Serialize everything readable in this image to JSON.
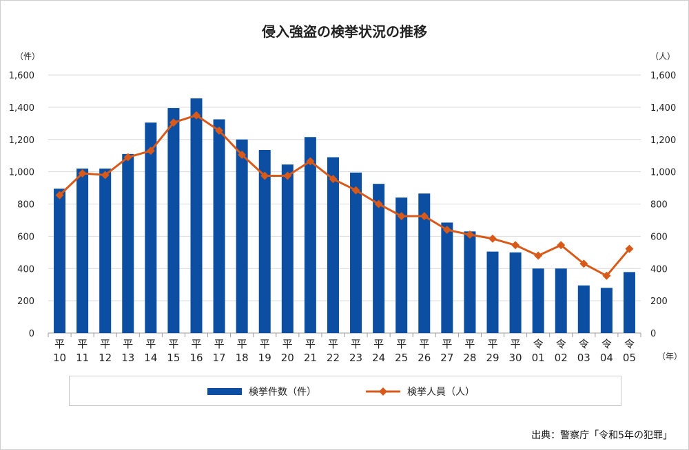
{
  "title": "侵入強盗の検挙状況の推移",
  "source": "出典：警察庁「令和5年の犯罪」",
  "units": {
    "left": "（件）",
    "right": "（人）",
    "x": "（年）"
  },
  "colors": {
    "bar": "#0b4ea2",
    "line": "#d85a1a"
  },
  "legend": {
    "bar_label": "検挙件数（件）",
    "line_label": "検挙人員（人）"
  },
  "chart_data": {
    "type": "bar",
    "title": "侵入強盗の検挙状況の推移",
    "categories": [
      [
        "平",
        "10"
      ],
      [
        "平",
        "11"
      ],
      [
        "平",
        "12"
      ],
      [
        "平",
        "13"
      ],
      [
        "平",
        "14"
      ],
      [
        "平",
        "15"
      ],
      [
        "平",
        "16"
      ],
      [
        "平",
        "17"
      ],
      [
        "平",
        "18"
      ],
      [
        "平",
        "19"
      ],
      [
        "平",
        "20"
      ],
      [
        "平",
        "21"
      ],
      [
        "平",
        "22"
      ],
      [
        "平",
        "23"
      ],
      [
        "平",
        "24"
      ],
      [
        "平",
        "25"
      ],
      [
        "平",
        "26"
      ],
      [
        "平",
        "27"
      ],
      [
        "平",
        "28"
      ],
      [
        "平",
        "29"
      ],
      [
        "平",
        "30"
      ],
      [
        "令",
        "01"
      ],
      [
        "令",
        "02"
      ],
      [
        "令",
        "03"
      ],
      [
        "令",
        "04"
      ],
      [
        "令",
        "05"
      ]
    ],
    "ylim": [
      0,
      1600
    ],
    "yticks": [
      0,
      200,
      400,
      600,
      800,
      1000,
      1200,
      1400,
      1600
    ],
    "ytick_labels": [
      "0",
      "200",
      "400",
      "600",
      "800",
      "1,000",
      "1,200",
      "1,400",
      "1,600"
    ],
    "series": [
      {
        "name": "検挙件数（件）",
        "type": "bar",
        "axis": "left",
        "values": [
          895,
          1020,
          1020,
          1110,
          1305,
          1395,
          1455,
          1325,
          1200,
          1135,
          1045,
          1215,
          1090,
          995,
          925,
          840,
          865,
          685,
          630,
          505,
          500,
          400,
          400,
          295,
          280,
          378
        ]
      },
      {
        "name": "検挙人員（人）",
        "type": "line",
        "axis": "right",
        "values": [
          855,
          990,
          980,
          1090,
          1130,
          1305,
          1350,
          1255,
          1105,
          975,
          975,
          1065,
          955,
          885,
          800,
          725,
          725,
          640,
          610,
          585,
          545,
          480,
          545,
          430,
          355,
          522
        ]
      }
    ],
    "grid": true,
    "legend_position": "bottom"
  }
}
